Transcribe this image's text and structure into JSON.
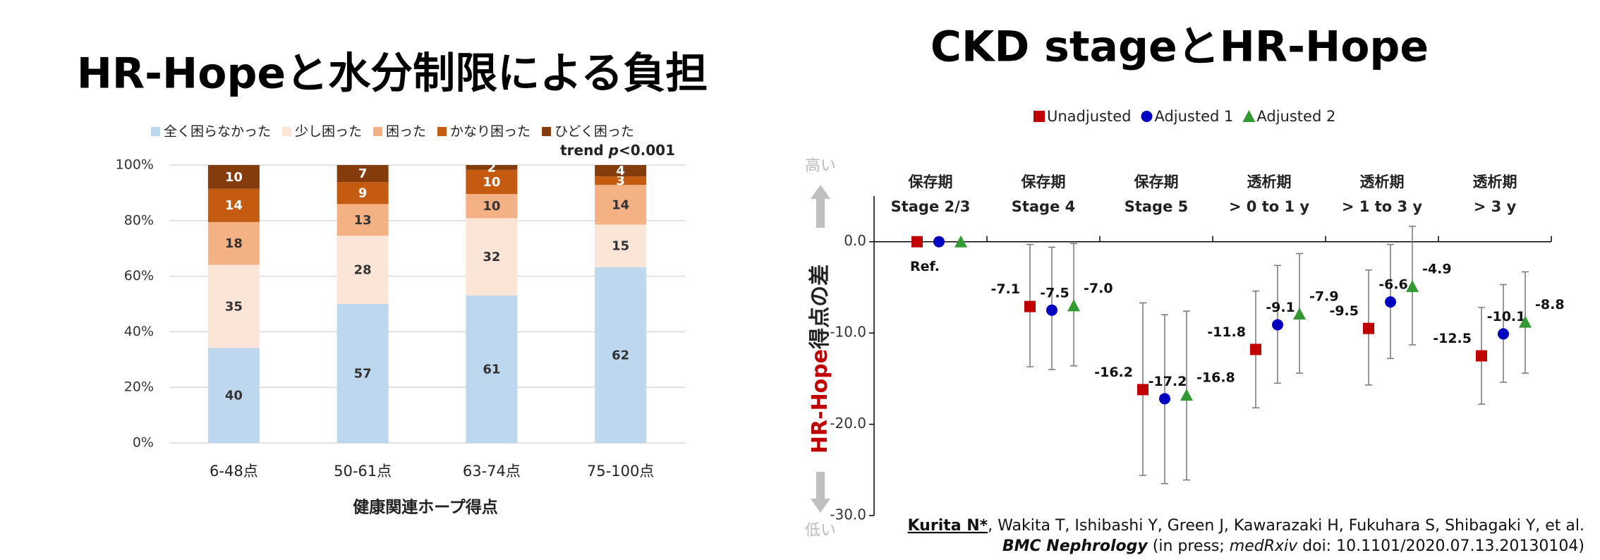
{
  "chart_data": [
    {
      "type": "bar",
      "stacked": "percent",
      "title": "HR-Hopeと水分制限による負担",
      "xlabel": "健康関連ホープ得点",
      "annotation": [
        "trend ",
        "p",
        "<0.001"
      ],
      "categories": [
        "6-48点",
        "50-61点",
        "63-74点",
        "75-100点"
      ],
      "series": [
        {
          "name": "全く困らなかった",
          "color": "#bdd7ee",
          "values": [
            40,
            57,
            61,
            62
          ]
        },
        {
          "name": "少し困った",
          "color": "#fbe5d6",
          "values": [
            35,
            28,
            32,
            15
          ]
        },
        {
          "name": "困った",
          "color": "#f4b183",
          "values": [
            18,
            13,
            10,
            14
          ]
        },
        {
          "name": "かなり困った",
          "color": "#c55a11",
          "values": [
            14,
            9,
            10,
            3
          ]
        },
        {
          "name": "ひどく困った",
          "color": "#843c0c",
          "values": [
            10,
            7,
            2,
            4
          ]
        }
      ],
      "ylim": [
        0,
        100
      ],
      "yticks": [
        {
          "value": 0,
          "label": "0%"
        },
        {
          "value": 20,
          "label": "20%"
        },
        {
          "value": 40,
          "label": "40%"
        },
        {
          "value": 60,
          "label": "60%"
        },
        {
          "value": 80,
          "label": "80%"
        },
        {
          "value": 100,
          "label": "100%"
        }
      ],
      "grid": true,
      "legend": "top"
    },
    {
      "type": "scatter",
      "title": "CKD stageとHR-Hope",
      "ylabel": [
        "HR-Hope",
        "得点の差"
      ],
      "ytop_label": "高い",
      "ybottom_label": "低い",
      "ref_label": "Ref.",
      "categories": [
        [
          "保存期",
          "Stage 2/3"
        ],
        [
          "保存期",
          "Stage 4"
        ],
        [
          "保存期",
          "Stage 5"
        ],
        [
          "透析期",
          "> 0 to 1 y"
        ],
        [
          "透析期",
          "> 1 to 3 y"
        ],
        [
          "透析期",
          "> 3 y"
        ]
      ],
      "series": [
        {
          "name": "Unadjusted",
          "color": "#c00000",
          "marker": "square",
          "values": [
            0,
            -7.1,
            -16.2,
            -11.8,
            -9.5,
            -12.5
          ],
          "value_labels": [
            null,
            "-7.1",
            "-16.2",
            "-11.8",
            "-9.5",
            "-12.5"
          ],
          "lower": [
            null,
            -13.7,
            -25.6,
            -18.2,
            -15.7,
            -17.8
          ],
          "upper": [
            null,
            -0.3,
            -6.7,
            -5.4,
            -3.1,
            -7.2
          ]
        },
        {
          "name": "Adjusted 1",
          "color": "#0000c0",
          "marker": "circle",
          "values": [
            0,
            -7.5,
            -17.2,
            -9.1,
            -6.6,
            -10.1
          ],
          "value_labels": [
            null,
            "-7.5",
            "-17.2",
            "-9.1",
            "-6.6",
            "-10.1"
          ],
          "lower": [
            null,
            -14.0,
            -26.5,
            -15.5,
            -12.8,
            -15.4
          ],
          "upper": [
            null,
            -0.6,
            -8.0,
            -2.6,
            -0.3,
            -4.7
          ]
        },
        {
          "name": "Adjusted 2",
          "color": "#339933",
          "marker": "triangle",
          "values": [
            0,
            -7.0,
            -16.8,
            -7.9,
            -4.9,
            -8.8
          ],
          "value_labels": [
            null,
            "-7.0",
            "-16.8",
            "-7.9",
            "-4.9",
            "-8.8"
          ],
          "lower": [
            null,
            -13.6,
            -26.1,
            -14.4,
            -11.3,
            -14.4
          ],
          "upper": [
            null,
            -0.2,
            -7.6,
            -1.3,
            1.7,
            -3.3
          ]
        }
      ],
      "ylim": [
        -30,
        5
      ],
      "yticks": [
        {
          "value": -30,
          "label": "-30.0"
        },
        {
          "value": -20,
          "label": "-20.0"
        },
        {
          "value": -10,
          "label": "-10.0"
        },
        {
          "value": 0,
          "label": "0.0"
        }
      ],
      "legend": "top"
    }
  ],
  "citation": [
    [
      "Kurita N*",
      ", Wakita T, Ishibashi Y, Green J, Kawarazaki H, Fukuhara S, Shibagaki Y, et al."
    ],
    [
      "BMC Nephrology",
      " (in press; ",
      "medRxiv",
      " doi: 10.1101/2020.07.13.20130104)"
    ]
  ]
}
